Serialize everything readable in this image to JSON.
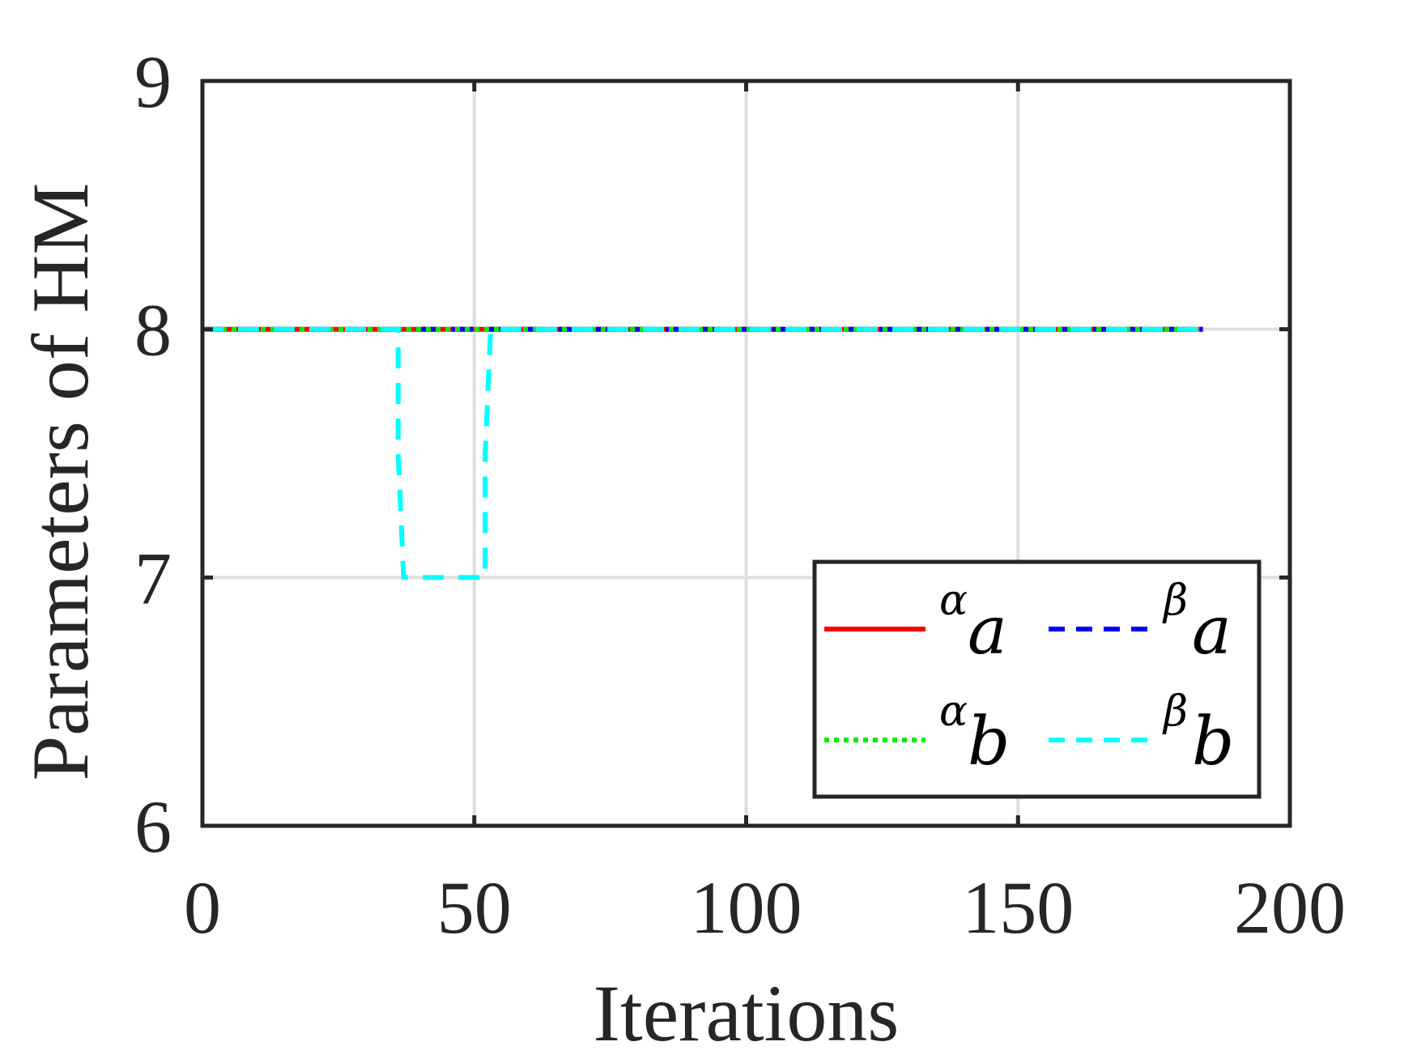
{
  "chart_data": {
    "type": "line",
    "title": "",
    "xlabel": "Iterations",
    "ylabel": "Parameters of HM",
    "xlim": [
      0,
      200
    ],
    "ylim": [
      6,
      9
    ],
    "xticks": [
      0,
      50,
      100,
      150,
      200
    ],
    "yticks": [
      6,
      7,
      8,
      9
    ],
    "grid": true,
    "legend_position": "bottom-right",
    "series": [
      {
        "name_sup": "α",
        "name_main": "a",
        "color": "#ff0000",
        "style": "solid",
        "x": [
          0,
          184
        ],
        "y": [
          8,
          8
        ]
      },
      {
        "name_sup": "β",
        "name_main": "a",
        "color": "#0000ff",
        "style": "dashed",
        "x": [
          0,
          184
        ],
        "y": [
          8,
          8
        ]
      },
      {
        "name_sup": "α",
        "name_main": "b",
        "color": "#00ee00",
        "style": "dotted",
        "x": [
          0,
          184
        ],
        "y": [
          8,
          8
        ]
      },
      {
        "name_sup": "β",
        "name_main": "b",
        "color": "#00ffff",
        "style": "dashed",
        "x": [
          0,
          36,
          36,
          37,
          38,
          52,
          52,
          53,
          184
        ],
        "y": [
          8,
          8,
          7.5,
          7.0,
          7.0,
          7.0,
          7.5,
          8,
          8
        ]
      }
    ]
  }
}
